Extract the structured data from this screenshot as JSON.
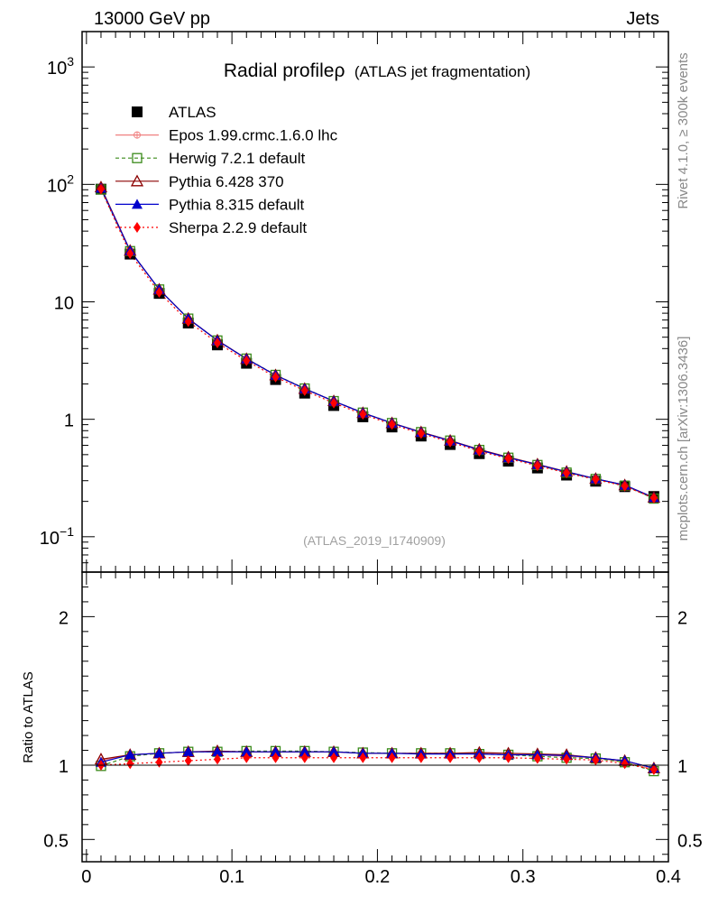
{
  "header": {
    "energy_label": "13000 GeV pp",
    "category_label": "Jets",
    "side_rivet": "Rivet 4.1.0, ≥ 300k events",
    "side_mcplots": "mcplots.cern.ch [arXiv:1306.3436]"
  },
  "chart_data": {
    "type": "line",
    "title": "Radial profileρ",
    "subtitle": "(ATLAS jet fragmentation)",
    "analysis_tag": "(ATLAS_2019_I1740909)",
    "x": [
      0.01,
      0.03,
      0.05,
      0.07,
      0.09,
      0.11,
      0.13,
      0.15,
      0.17,
      0.19,
      0.21,
      0.23,
      0.25,
      0.27,
      0.29,
      0.31,
      0.33,
      0.35,
      0.37,
      0.39
    ],
    "xlim": [
      -0.003,
      0.4
    ],
    "x_ticks": [
      0,
      0.1,
      0.2,
      0.3,
      0.4
    ],
    "x_tick_labels": [
      "0",
      "0.1",
      "0.2",
      "0.3",
      "0.4"
    ],
    "main_panel": {
      "yscale": "log",
      "ylim": [
        0.05,
        2000
      ],
      "y_tick_labels": [
        {
          "value": 1000,
          "base": "10",
          "exp": "3"
        },
        {
          "value": 100,
          "base": "10",
          "exp": "2"
        },
        {
          "value": 10,
          "base": "10",
          "exp": ""
        },
        {
          "value": 1,
          "base": "1",
          "exp": ""
        },
        {
          "value": 0.1,
          "base": "10",
          "exp": "−1"
        }
      ],
      "data": {
        "name": "ATLAS",
        "values": [
          91,
          25.5,
          11.8,
          6.6,
          4.3,
          3.0,
          2.18,
          1.67,
          1.31,
          1.05,
          0.86,
          0.72,
          0.61,
          0.51,
          0.44,
          0.385,
          0.335,
          0.297,
          0.267,
          0.22
        ]
      }
    },
    "ratio_panel": {
      "ylabel": "Ratio to ATLAS",
      "ylim": [
        0.35,
        2.3
      ],
      "y_ticks": [
        0.5,
        1,
        2
      ],
      "y_tick_labels": [
        "0.5",
        "1",
        "2"
      ],
      "reference": 1
    },
    "series": [
      {
        "name": "Epos 1.99.crmc.1.6.0 lhc",
        "color": "#f08080",
        "dash": "none",
        "marker": "cross-circle",
        "ratio": [
          1.03,
          1.07,
          1.08,
          1.09,
          1.09,
          1.09,
          1.09,
          1.09,
          1.09,
          1.08,
          1.08,
          1.08,
          1.08,
          1.08,
          1.07,
          1.07,
          1.06,
          1.05,
          1.02,
          0.97
        ]
      },
      {
        "name": "Herwig 7.2.1 default",
        "color": "#3a8a1a",
        "dash": "4,3",
        "marker": "open-square",
        "ratio": [
          0.995,
          1.06,
          1.08,
          1.09,
          1.09,
          1.095,
          1.095,
          1.095,
          1.09,
          1.085,
          1.08,
          1.08,
          1.08,
          1.075,
          1.07,
          1.06,
          1.05,
          1.045,
          1.02,
          0.96
        ]
      },
      {
        "name": "Pythia 6.428 370",
        "color": "#8b0000",
        "dash": "none",
        "marker": "open-triangle",
        "ratio": [
          1.04,
          1.07,
          1.08,
          1.09,
          1.095,
          1.09,
          1.09,
          1.09,
          1.09,
          1.08,
          1.08,
          1.08,
          1.08,
          1.085,
          1.08,
          1.075,
          1.07,
          1.05,
          1.03,
          0.98
        ]
      },
      {
        "name": "Pythia 8.315 default",
        "color": "#0000cc",
        "dash": "none",
        "marker": "filled-triangle",
        "ratio": [
          1.02,
          1.07,
          1.08,
          1.09,
          1.09,
          1.09,
          1.09,
          1.09,
          1.09,
          1.08,
          1.08,
          1.075,
          1.075,
          1.075,
          1.07,
          1.07,
          1.065,
          1.05,
          1.03,
          0.98
        ]
      },
      {
        "name": "Sherpa 2.2.9 default",
        "color": "#ff0000",
        "dash": "2,3",
        "marker": "filled-diamond",
        "ratio": [
          1.0,
          1.01,
          1.02,
          1.03,
          1.04,
          1.05,
          1.05,
          1.05,
          1.05,
          1.05,
          1.05,
          1.05,
          1.05,
          1.05,
          1.05,
          1.045,
          1.04,
          1.035,
          1.01,
          0.97
        ]
      }
    ]
  }
}
